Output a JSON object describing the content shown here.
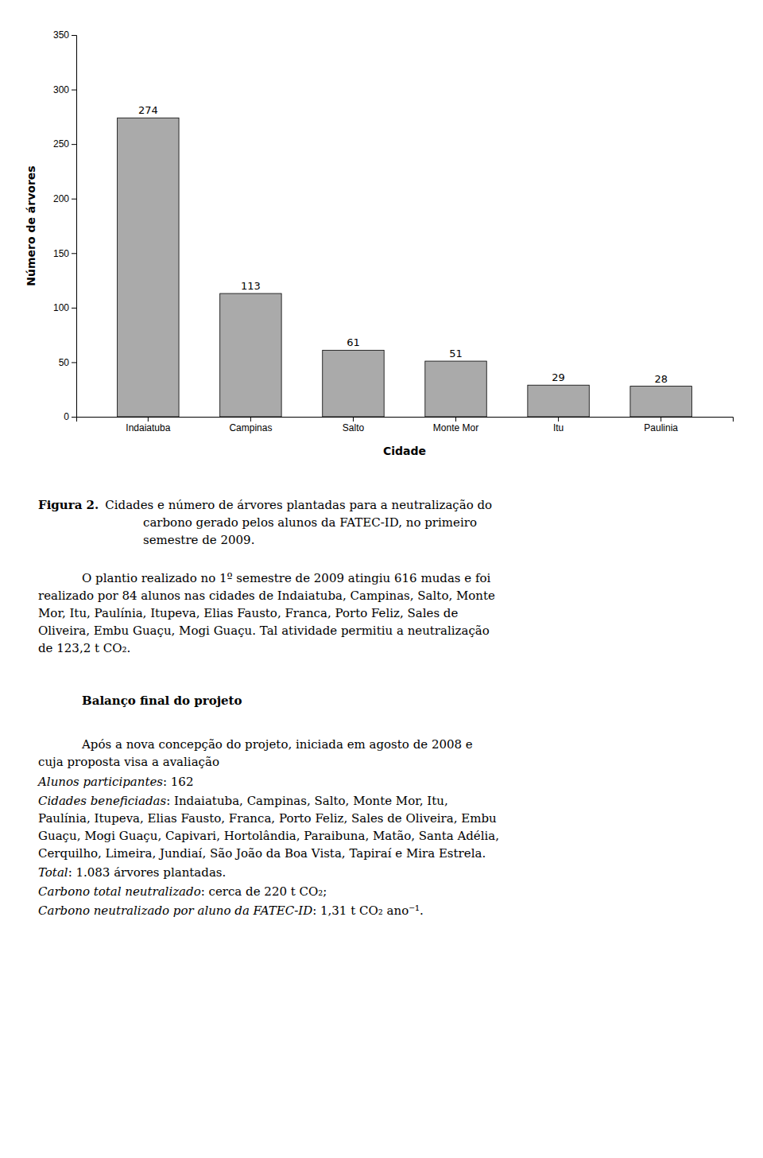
{
  "chart_data": {
    "type": "bar",
    "categories": [
      "Indaiatuba",
      "Campinas",
      "Salto",
      "Monte Mor",
      "Itu",
      "Paulinia"
    ],
    "values": [
      274,
      113,
      61,
      51,
      29,
      28
    ],
    "color": "#aaaaaa",
    "xlabel": "Cidade",
    "ylabel": "Número de árvores",
    "ylim": [
      0,
      350
    ],
    "yticks": [
      0,
      50,
      100,
      150,
      200,
      250,
      300,
      350
    ],
    "grid": false,
    "data_labels": true,
    "annotations": [
      [
        "Figura 2.",
        "Cidades e número de árvores plantadas para a neutralização do"
      ],
      [
        "carbono gerado pelos alunos da FATEC-ID, no primeiro"
      ],
      [
        "semestre de 2009."
      ],
      [
        "O plantio realizado no 1º semestre de 2009 atingiu 616 mudas e foi"
      ],
      [
        "realizado por 84 alunos nas cidades de Indaiatuba, Campinas, Salto, Monte"
      ],
      [
        "Mor, Itu, Paulínia, Itupeva, Elias Fausto, Franca, Porto Feliz, Sales de"
      ],
      [
        "Oliveira, Embu Guaçu, Mogi Guaçu. Tal atividade permitiu a neutralização"
      ],
      [
        "de 123,2 t CO₂."
      ],
      [
        "Balanço final do projeto"
      ],
      [
        "Após a nova concepção do projeto, iniciada em agosto de 2008 e"
      ],
      [
        "cuja proposta visa a avaliação"
      ],
      [
        "Alunos participantes",
        ": 162"
      ],
      [
        "Cidades beneficiadas",
        ": Indaiatuba, Campinas, Salto, Monte Mor, Itu,"
      ],
      [
        "Paulínia, Itupeva, Elias Fausto, Franca, Porto Feliz, Sales de Oliveira, Embu"
      ],
      [
        "Guaçu, Mogi Guaçu, Capivari, Hortolândia, Paraibuna, Matão, Santa Adélia,"
      ],
      [
        "Cerquilho, Limeira, Jundiaí, São João da Boa Vista, Tapiraí e Mira Estrela."
      ],
      [
        "Total",
        ": 1.083 árvores plantadas."
      ],
      [
        "Carbono total neutralizado",
        ": cerca de 220 t CO₂;"
      ],
      [
        "Carbono neutralizado por aluno da FATEC-ID",
        ": 1,31 t CO₂ ano⁻¹."
      ]
    ]
  }
}
